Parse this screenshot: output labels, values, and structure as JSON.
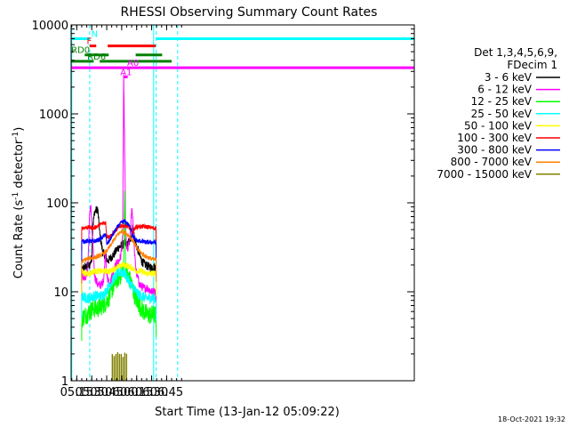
{
  "chart_data": {
    "type": "line",
    "title": "RHESSI Observing Summary Count Rates",
    "xlabel": "Start Time (13-Jan-12 05:09:22)",
    "ylabel_main": "Count Rate (s",
    "ylabel_sup1": "-1",
    "ylabel_mid": " detector",
    "ylabel_sup2": "-1",
    "ylabel_end": ")",
    "x_unit": "minutes of day (UT)",
    "xlim": [
      309.37,
      653.0
    ],
    "ylim": [
      1,
      10000
    ],
    "y_scale": "log",
    "x_ticks": [
      {
        "value": 315,
        "label": "05:15"
      },
      {
        "value": 330,
        "label": "05:30"
      },
      {
        "value": 345,
        "label": "05:45"
      },
      {
        "value": 360,
        "label": "06:00"
      },
      {
        "value": 375,
        "label": "06:15"
      },
      {
        "value": 390,
        "label": "06:30"
      },
      {
        "value": 405,
        "label": "06:45"
      }
    ],
    "y_ticks": [
      {
        "value": 1,
        "label": "1"
      },
      {
        "value": 10,
        "label": "10"
      },
      {
        "value": 100,
        "label": "100"
      },
      {
        "value": 1000,
        "label": "1000"
      },
      {
        "value": 10000,
        "label": "10000"
      }
    ],
    "legend_header": [
      "Det 1,3,4,5,6,9,",
      "FDecim 1"
    ],
    "legend_position": "right",
    "data_start": 320.0,
    "data_end": 394.5,
    "series": [
      {
        "name": "3 - 6 keV",
        "color": "#000000",
        "points": [
          [
            320,
            18
          ],
          [
            324,
            19
          ],
          [
            328,
            20
          ],
          [
            330,
            24
          ],
          [
            331,
            55
          ],
          [
            333,
            80
          ],
          [
            336,
            85
          ],
          [
            338,
            45
          ],
          [
            341,
            28
          ],
          [
            344,
            25
          ],
          [
            346,
            22
          ],
          [
            349,
            24
          ],
          [
            352,
            26
          ],
          [
            356,
            31
          ],
          [
            360,
            33
          ],
          [
            363,
            35
          ],
          [
            365,
            33
          ],
          [
            368,
            38
          ],
          [
            370,
            40
          ],
          [
            371,
            60
          ],
          [
            372,
            45
          ],
          [
            374,
            35
          ],
          [
            377,
            28
          ],
          [
            380,
            22
          ],
          [
            384,
            20
          ],
          [
            388,
            19
          ],
          [
            392,
            19
          ],
          [
            394.5,
            19
          ]
        ]
      },
      {
        "name": "6 - 12 keV",
        "color": "#ff00ff",
        "points": [
          [
            320,
            15
          ],
          [
            324,
            15
          ],
          [
            326,
            17
          ],
          [
            328,
            80
          ],
          [
            329,
            95
          ],
          [
            331,
            35
          ],
          [
            333,
            15
          ],
          [
            336,
            12
          ],
          [
            340,
            12
          ],
          [
            342,
            14
          ],
          [
            344,
            30
          ],
          [
            345,
            15
          ],
          [
            348,
            12
          ],
          [
            351,
            16
          ],
          [
            354,
            20
          ],
          [
            357,
            22
          ],
          [
            359,
            25
          ],
          [
            361,
            40
          ],
          [
            362,
            2500
          ],
          [
            363,
            400
          ],
          [
            364,
            40
          ],
          [
            366,
            28
          ],
          [
            369,
            50
          ],
          [
            370,
            90
          ],
          [
            371,
            70
          ],
          [
            373,
            25
          ],
          [
            375,
            16
          ],
          [
            378,
            12
          ],
          [
            382,
            11
          ],
          [
            386,
            11
          ],
          [
            390,
            10
          ],
          [
            394.5,
            10
          ]
        ]
      },
      {
        "name": "12 - 25 keV",
        "color": "#00ff00",
        "points": [
          [
            320,
            5
          ],
          [
            324,
            5.5
          ],
          [
            328,
            6
          ],
          [
            332,
            6.5
          ],
          [
            336,
            6.5
          ],
          [
            340,
            7
          ],
          [
            344,
            7.5
          ],
          [
            348,
            9
          ],
          [
            352,
            12
          ],
          [
            356,
            14
          ],
          [
            360,
            16
          ],
          [
            362,
            20
          ],
          [
            363,
            160
          ],
          [
            364,
            18
          ],
          [
            366,
            15
          ],
          [
            369,
            13
          ],
          [
            372,
            10
          ],
          [
            375,
            8
          ],
          [
            378,
            7
          ],
          [
            382,
            6
          ],
          [
            386,
            5.5
          ],
          [
            390,
            5.5
          ],
          [
            394.5,
            5.5
          ]
        ]
      },
      {
        "name": "25 - 50 keV",
        "color": "#00ffff",
        "points": [
          [
            320,
            9
          ],
          [
            324,
            8.5
          ],
          [
            328,
            8.5
          ],
          [
            332,
            9
          ],
          [
            336,
            9
          ],
          [
            340,
            9
          ],
          [
            344,
            10
          ],
          [
            348,
            12
          ],
          [
            352,
            14
          ],
          [
            356,
            16
          ],
          [
            360,
            17
          ],
          [
            363,
            16
          ],
          [
            366,
            14
          ],
          [
            369,
            12
          ],
          [
            372,
            11
          ],
          [
            376,
            9.5
          ],
          [
            380,
            9
          ],
          [
            384,
            8.5
          ],
          [
            388,
            8.5
          ],
          [
            392,
            8.5
          ],
          [
            394.5,
            8.5
          ]
        ]
      },
      {
        "name": "50 - 100 keV",
        "color": "#ffff00",
        "points": [
          [
            320,
            17
          ],
          [
            324,
            16
          ],
          [
            328,
            16
          ],
          [
            332,
            17
          ],
          [
            336,
            17
          ],
          [
            340,
            17
          ],
          [
            344,
            17
          ],
          [
            348,
            17
          ],
          [
            352,
            18
          ],
          [
            356,
            19
          ],
          [
            360,
            20
          ],
          [
            364,
            20
          ],
          [
            368,
            19
          ],
          [
            372,
            18
          ],
          [
            376,
            17
          ],
          [
            380,
            17
          ],
          [
            384,
            16
          ],
          [
            388,
            16
          ],
          [
            392,
            16
          ],
          [
            394.5,
            16
          ]
        ]
      },
      {
        "name": "100 - 300 keV",
        "color": "#ff0000",
        "points": [
          [
            320,
            52
          ],
          [
            324,
            53
          ],
          [
            328,
            53
          ],
          [
            332,
            52
          ],
          [
            336,
            55
          ],
          [
            340,
            58
          ],
          [
            344,
            60
          ],
          [
            345,
            42
          ],
          [
            348,
            42
          ],
          [
            352,
            46
          ],
          [
            356,
            52
          ],
          [
            360,
            56
          ],
          [
            364,
            55
          ],
          [
            368,
            52
          ],
          [
            371,
            45
          ],
          [
            373,
            52
          ],
          [
            376,
            54
          ],
          [
            380,
            54
          ],
          [
            384,
            54
          ],
          [
            388,
            53
          ],
          [
            392,
            52
          ],
          [
            394.5,
            52
          ]
        ]
      },
      {
        "name": "300 - 800 keV",
        "color": "#0000ff",
        "points": [
          [
            320,
            37
          ],
          [
            324,
            37
          ],
          [
            328,
            37
          ],
          [
            332,
            37
          ],
          [
            336,
            38
          ],
          [
            340,
            40
          ],
          [
            344,
            45
          ],
          [
            345,
            34
          ],
          [
            348,
            38
          ],
          [
            352,
            46
          ],
          [
            356,
            54
          ],
          [
            360,
            60
          ],
          [
            363,
            62
          ],
          [
            366,
            58
          ],
          [
            369,
            52
          ],
          [
            371,
            42
          ],
          [
            373,
            40
          ],
          [
            376,
            37
          ],
          [
            380,
            37
          ],
          [
            384,
            36
          ],
          [
            388,
            36
          ],
          [
            392,
            36
          ],
          [
            394.5,
            36
          ]
        ]
      },
      {
        "name": "800 - 7000 keV",
        "color": "#ff8000",
        "points": [
          [
            320,
            22
          ],
          [
            324,
            23
          ],
          [
            328,
            24
          ],
          [
            332,
            24
          ],
          [
            336,
            25
          ],
          [
            340,
            26
          ],
          [
            344,
            28
          ],
          [
            348,
            32
          ],
          [
            352,
            38
          ],
          [
            356,
            44
          ],
          [
            360,
            48
          ],
          [
            364,
            46
          ],
          [
            368,
            42
          ],
          [
            372,
            36
          ],
          [
            376,
            30
          ],
          [
            380,
            27
          ],
          [
            384,
            25
          ],
          [
            388,
            24
          ],
          [
            392,
            23
          ],
          [
            394.5,
            23
          ]
        ]
      },
      {
        "name": "7000 - 15000 keV",
        "color": "#808000",
        "points": []
      }
    ],
    "bars": [
      {
        "name": "7000 - 15000 keV",
        "color": "#808000",
        "x_start": 350,
        "x_end": 366,
        "value": 2
      }
    ],
    "vertical_markers": [
      {
        "value": 310.0,
        "color": "#00ffff",
        "style": "solid"
      },
      {
        "value": 328.0,
        "color": "#00ffff",
        "style": "dashed"
      },
      {
        "value": 392.0,
        "color": "#00ffff",
        "style": "solid"
      },
      {
        "value": 394.5,
        "color": "#00ffff",
        "style": "dashed"
      },
      {
        "value": 416.0,
        "color": "#00ffff",
        "style": "dashed"
      }
    ],
    "flag_bars": [
      {
        "label": "N",
        "color": "#00ffff",
        "level": 7000,
        "segments": [
          [
            309.37,
            328.0
          ],
          [
            394.5,
            653.0
          ]
        ],
        "label_at": 329.5
      },
      {
        "label": "F",
        "color": "#ff0000",
        "level": 5800,
        "segments": [
          [
            328.0,
            334.5
          ],
          [
            346.0,
            394.0
          ]
        ],
        "label_at": 325.0
      },
      {
        "label": "RD0",
        "color": "#008000",
        "level": 4600,
        "segments": [
          [
            323.0,
            347.0
          ],
          [
            374.0,
            400.5
          ]
        ],
        "label_at": 309.5
      },
      {
        "label": "RD6",
        "color": "#008000",
        "level": 3900,
        "segments": [
          [
            309.37,
            332.0
          ],
          [
            338.0,
            410.0
          ]
        ],
        "label_at": 325.5
      },
      {
        "label": "A0",
        "color": "#ff00ff",
        "level": 3300,
        "segments": [
          [
            309.37,
            653.0
          ]
        ],
        "label_at": 365.5
      },
      {
        "label": "A1",
        "color": "#ff00ff",
        "level": 2600,
        "segments": [
          [
            362.0,
            366.0
          ]
        ],
        "label_at": 358.5
      }
    ]
  },
  "footer_date": "18-Oct-2021 19:32"
}
